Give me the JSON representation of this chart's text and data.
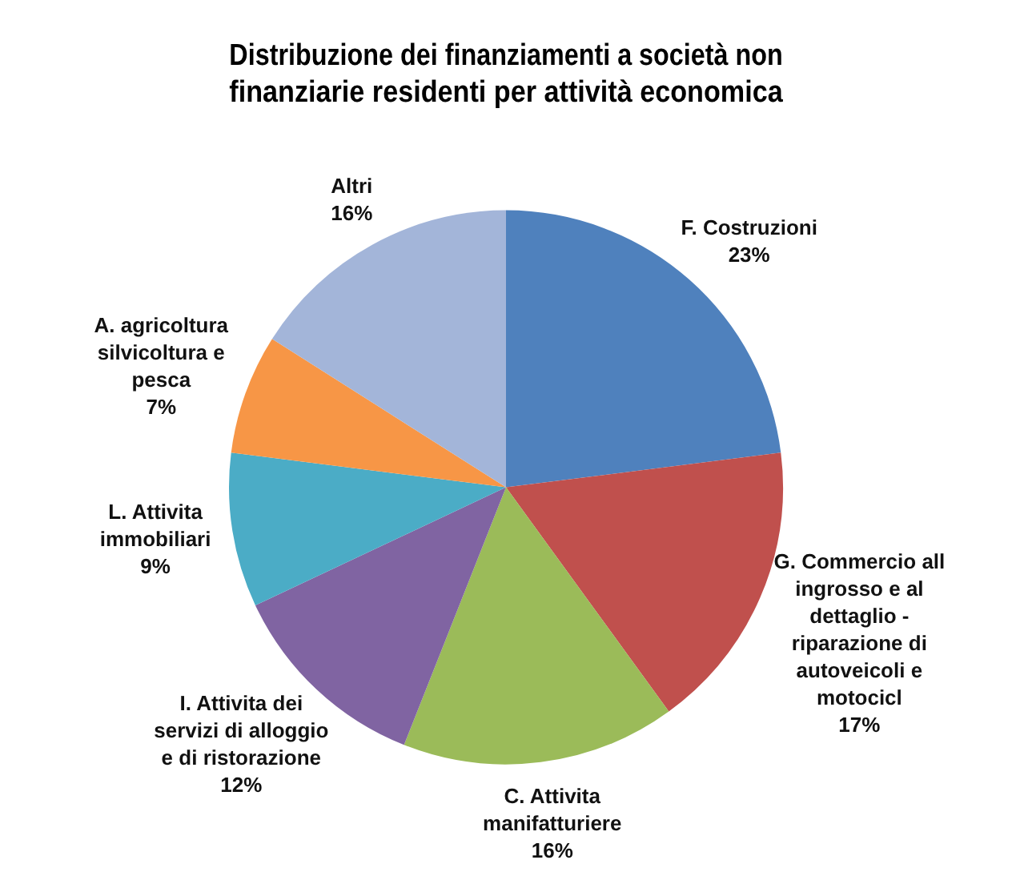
{
  "chart_data": {
    "type": "pie",
    "title": "Distribuzione dei finanziamenti a società non finanziarie residenti per attività economica",
    "categories": [
      "F. Costruzioni",
      "G. Commercio all ingrosso e al dettaglio - riparazione di autoveicoli e motocicl",
      "C. Attivita manifatturiere",
      "I. Attivita dei servizi di alloggio e di ristorazione",
      "L. Attivita immobiliari",
      "A. agricoltura silvicoltura e pesca",
      "Altri"
    ],
    "values": [
      23,
      17,
      16,
      12,
      9,
      7,
      16
    ],
    "colors": [
      "#4f81bd",
      "#c0504d",
      "#9bbb59",
      "#8064a2",
      "#4bacc6",
      "#f79646",
      "#a3b5d9"
    ],
    "value_labels": [
      "23%",
      "17%",
      "16%",
      "12%",
      "9%",
      "7%",
      "16%"
    ],
    "legend": false
  }
}
